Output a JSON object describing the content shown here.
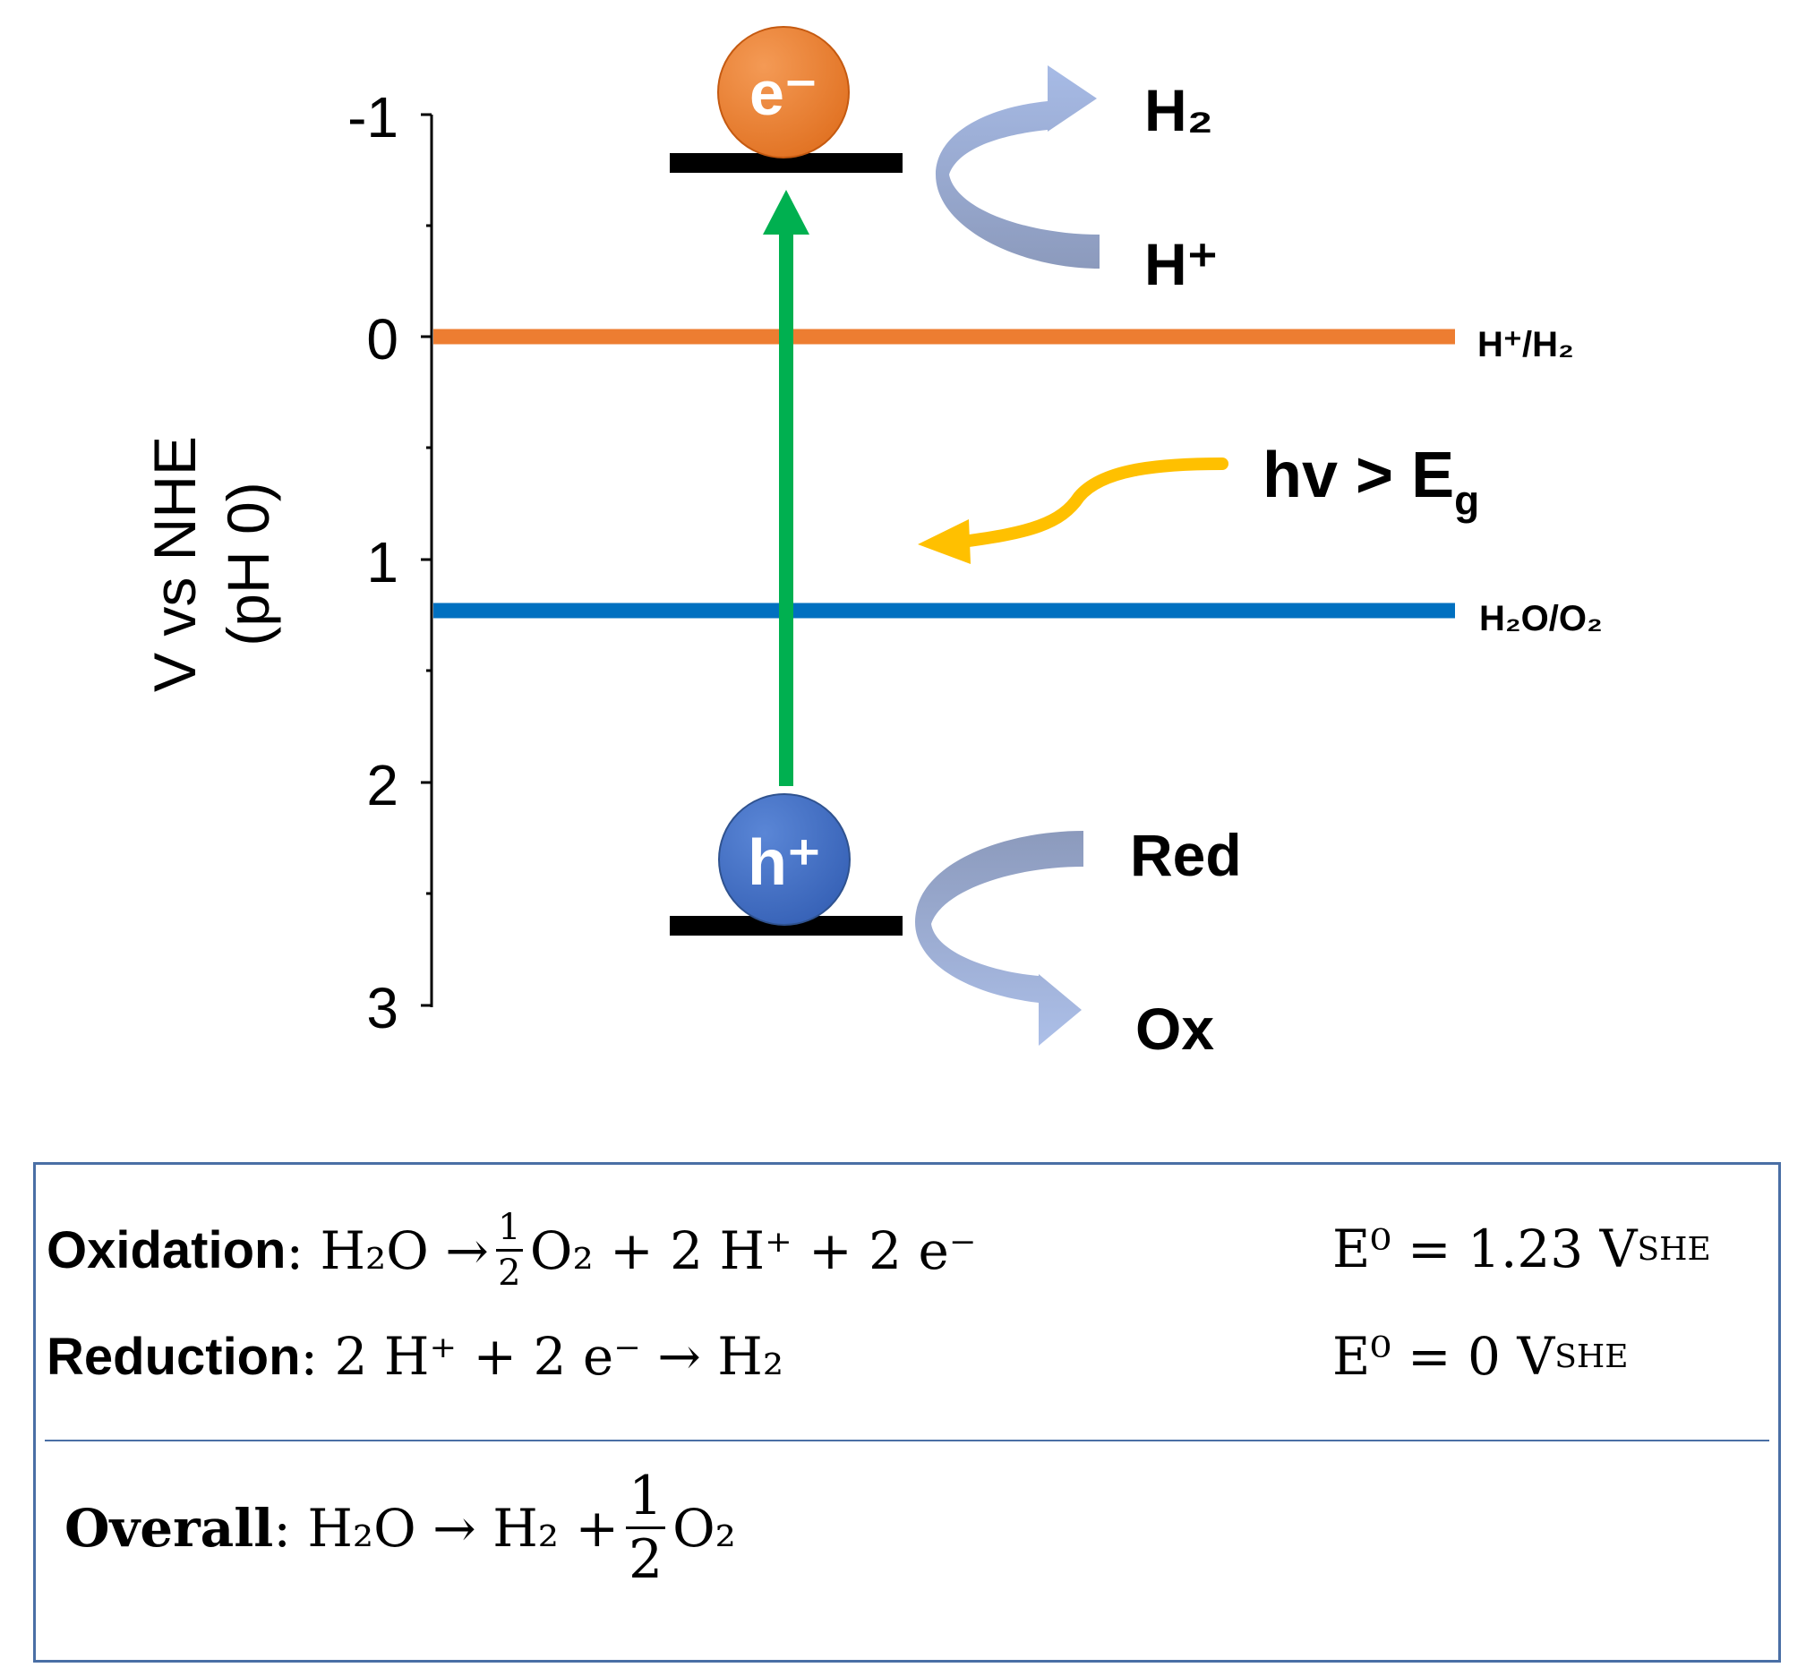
{
  "axis": {
    "title_line1": "V vs NHE",
    "title_line2": "(pH 0)",
    "ticks": [
      "-1",
      "0",
      "1",
      "2",
      "3"
    ]
  },
  "levels": {
    "h_h2": "H⁺/H₂",
    "h2o_o2": "H₂O/O₂"
  },
  "particles": {
    "electron": "e⁻",
    "hole": "h⁺"
  },
  "reactions": {
    "top_product": "H₂",
    "top_reactant": "H⁺",
    "bottom_reactant": "Red",
    "bottom_product": "Ox"
  },
  "light": {
    "label": "hv > E",
    "subscript": "g"
  },
  "equations": {
    "oxidation": {
      "label": "Oxidation",
      "lhs": "H₂O",
      "frac_num": "1",
      "frac_den": "2",
      "rhs": "O₂ + 2 H⁺ + 2 e⁻",
      "potential": "E⁰ = 1.23 V",
      "potential_sub": "SHE"
    },
    "reduction": {
      "label": "Reduction",
      "equation": "2 H⁺ + 2 e⁻ → H₂",
      "potential": "E⁰ = 0 V",
      "potential_sub": "SHE"
    },
    "overall": {
      "label": "Overall",
      "lhs": "H₂O",
      "rhs_a": "H₂ +",
      "frac_num": "1",
      "frac_den": "2",
      "rhs_b": "O₂"
    }
  },
  "colors": {
    "h_h2_line": "#ed7d31",
    "h2o_o2_line": "#0070c0",
    "excitation_arrow": "#00b050",
    "electron": "#ed7d31",
    "hole": "#4472c4",
    "light_arrow": "#ffc000",
    "reaction_arrow": "#8fa5d6"
  }
}
